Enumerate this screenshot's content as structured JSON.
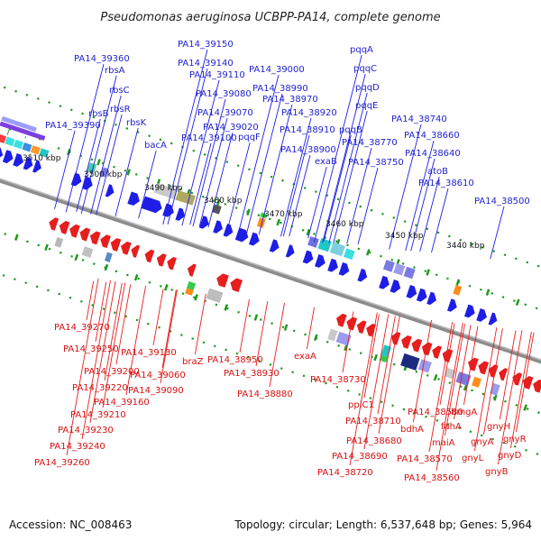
{
  "title": "Pseudomonas aeruginosa UCBPP-PA14, complete genome",
  "footer": {
    "accession": "Accession: NC_008463",
    "topology": "Topology: circular; Length: 6,537,648 bp; Genes: 5,964"
  },
  "colors": {
    "forward": "#1e1ee6",
    "reverse": "#e61e1e",
    "backbone": "#8c8c8c",
    "tick": "#1e9a1e"
  },
  "chart_data": {
    "type": "linear-genome-map",
    "position_labels": [
      "3510 kbp",
      "3500 kbp",
      "3490 kbp",
      "3480 kbp",
      "3470 kbp",
      "3460 kbp",
      "3450 kbp",
      "3440 kbp"
    ],
    "forward_labels": [
      "PA14_39360",
      "rbsA",
      "rbsC",
      "rbsR",
      "rbsB",
      "rbsK",
      "PA14_39390",
      "bacA",
      "PA14_39150",
      "PA14_39140",
      "PA14_39110",
      "PA14_39080",
      "PA14_39070",
      "PA14_39100",
      "PA14_39020",
      "pqqF",
      "PA14_39000",
      "PA14_38990",
      "PA14_38970",
      "PA14_38920",
      "PA14_38910",
      "PA14_38900",
      "exaB",
      "pqqA",
      "pqqC",
      "pqqD",
      "pqqE",
      "PA14_38740",
      "pqqB",
      "PA14_38770",
      "PA14_38750",
      "PA14_38660",
      "PA14_38640",
      "atoB",
      "PA14_38610",
      "PA14_38500"
    ],
    "reverse_labels": [
      "PA14_39270",
      "PA14_39250",
      "PA14_39200",
      "PA14_39220",
      "PA14_39160",
      "PA14_39210",
      "PA14_39230",
      "PA14_39240",
      "PA14_39260",
      "PA14_39130",
      "PA14_39060",
      "braZ",
      "PA14_39090",
      "PA14_38950",
      "PA14_38930",
      "exaA",
      "PA14_38880",
      "PA14_38730",
      "ppiC1",
      "PA14_38710",
      "PA14_38680",
      "PA14_38690",
      "PA14_38720",
      "PA14_38580",
      "bdhA",
      "hmgA",
      "fahA",
      "maiA",
      "PA14_38570",
      "gnyL",
      "gnyA",
      "gnyH",
      "gnyR",
      "gnyD",
      "PA14_38560",
      "gnyB"
    ]
  }
}
